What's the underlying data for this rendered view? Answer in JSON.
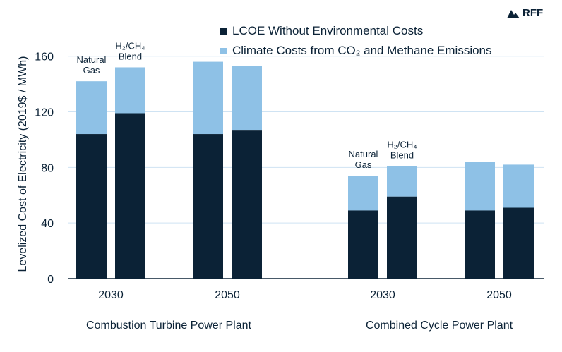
{
  "logo_text": "RFF",
  "legend": [
    {
      "label": "LCOE Without Environmental Costs",
      "color": "#0b2236"
    },
    {
      "label": "Climate Costs from CO₂ and Methane Emissions",
      "color": "#8ec1e6"
    }
  ],
  "chart_data": {
    "type": "bar",
    "stacked": true,
    "ylabel": "Levelized Cost of Electricity (2019$ / MWh)",
    "ylim": [
      0,
      170
    ],
    "yticks": [
      0,
      40,
      80,
      120,
      160
    ],
    "grid": true,
    "groups": [
      {
        "plant": "Combustion Turbine Power Plant",
        "year": "2030",
        "bars": [
          {
            "label": "Natural Gas",
            "lcoe": 104,
            "climate": 38
          },
          {
            "label": "H₂/CH₄ Blend",
            "lcoe": 119,
            "climate": 33
          }
        ]
      },
      {
        "plant": "Combustion Turbine Power Plant",
        "year": "2050",
        "bars": [
          {
            "label": "",
            "lcoe": 104,
            "climate": 52
          },
          {
            "label": "",
            "lcoe": 107,
            "climate": 46
          }
        ]
      },
      {
        "plant": "Combined Cycle Power Plant",
        "year": "2030",
        "bars": [
          {
            "label": "Natural Gas",
            "lcoe": 49,
            "climate": 25
          },
          {
            "label": "H₂/CH₄ Blend",
            "lcoe": 59,
            "climate": 22
          }
        ]
      },
      {
        "plant": "Combined Cycle Power Plant",
        "year": "2050",
        "bars": [
          {
            "label": "",
            "lcoe": 49,
            "climate": 35
          },
          {
            "label": "",
            "lcoe": 51,
            "climate": 31
          }
        ]
      }
    ],
    "plant_labels": [
      "Combustion Turbine Power Plant",
      "Combined Cycle Power Plant"
    ],
    "colors": {
      "lcoe": "#0b2236",
      "climate": "#8ec1e6",
      "grid": "#cfe3f3",
      "axis": "#0b2236"
    }
  }
}
